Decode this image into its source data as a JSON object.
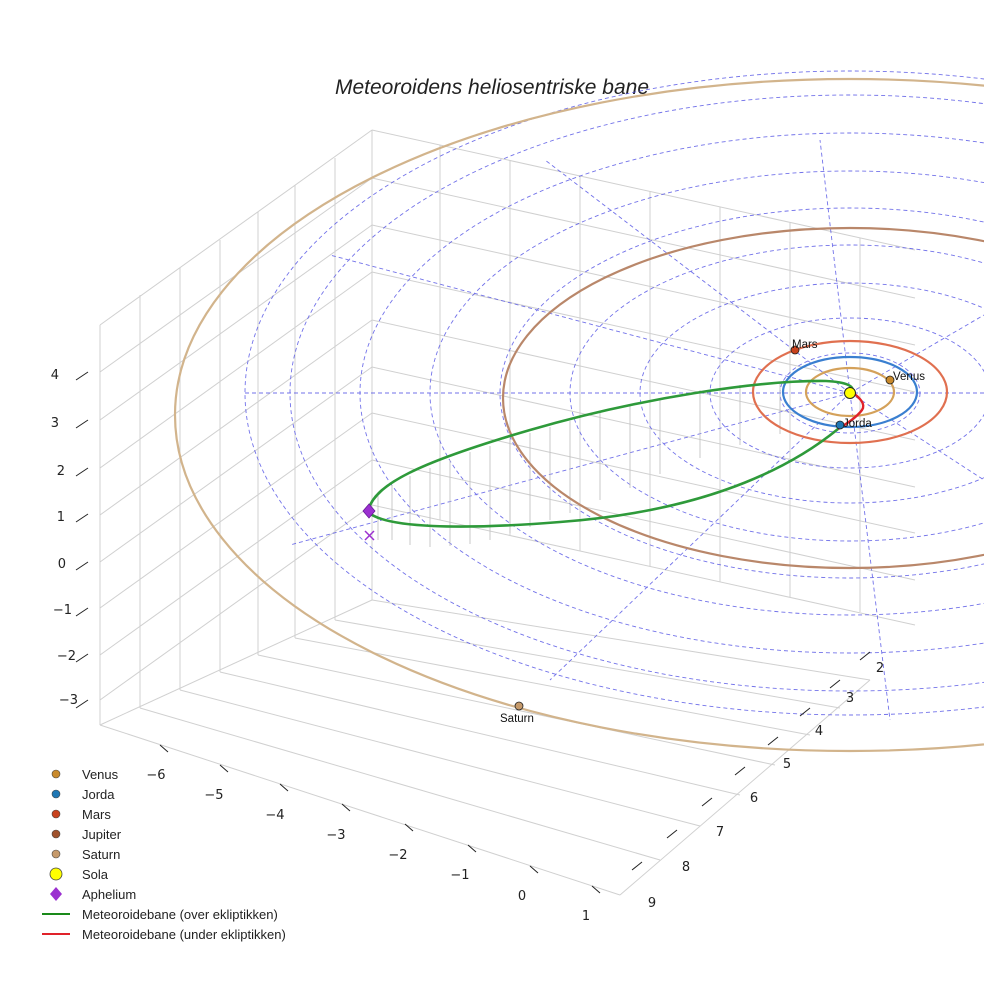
{
  "chart_data": {
    "type": "3d-orbit-plot",
    "title": "Meteoroidens heliosentriske bane",
    "z_ticks": [
      "4",
      "3",
      "2",
      "1",
      "0",
      "−1",
      "−2",
      "−3"
    ],
    "x_ticks": [
      "−6",
      "−5",
      "−4",
      "−3",
      "−2",
      "−1",
      "0",
      "1"
    ],
    "y_ticks": [
      "2",
      "3",
      "4",
      "5",
      "6",
      "7",
      "8",
      "9"
    ],
    "planets": [
      {
        "name": "Venus",
        "label": "Venus",
        "a_au": 0.72,
        "color": "#d4a15a",
        "marker": "#c98a2c"
      },
      {
        "name": "Jorda",
        "label": "Jorda",
        "a_au": 1.0,
        "color": "#3a7fd0",
        "marker": "#1f77b4"
      },
      {
        "name": "Mars",
        "label": "Mars",
        "a_au": 1.52,
        "color": "#e07050",
        "marker": "#c8421e"
      },
      {
        "name": "Jupiter",
        "label": "",
        "a_au": 5.2,
        "color": "#b9876a",
        "marker": "#a0522d"
      },
      {
        "name": "Saturn",
        "label": "Saturn",
        "a_au": 9.58,
        "color": "#d2b48c",
        "marker": "#c69a6b"
      }
    ],
    "meteoroid": {
      "perihelion_au": 0.3,
      "aphelion_au": 6.5,
      "color_above": "#2e9a3a",
      "color_below": "#e0222a"
    },
    "legend": [
      {
        "label": "Venus",
        "symbol": "circle",
        "color": "#c98a2c"
      },
      {
        "label": "Jorda",
        "symbol": "circle",
        "color": "#1f77b4"
      },
      {
        "label": "Mars",
        "symbol": "circle",
        "color": "#c8421e"
      },
      {
        "label": "Jupiter",
        "symbol": "circle",
        "color": "#a0522d"
      },
      {
        "label": "Saturn",
        "symbol": "circle",
        "color": "#c69a6b"
      },
      {
        "label": "Sola",
        "symbol": "big-circle",
        "color": "#ffff00"
      },
      {
        "label": "Aphelium",
        "symbol": "diamond",
        "color": "#9b30d0"
      },
      {
        "label": "Meteoroidebane (over ekliptikken)",
        "symbol": "line",
        "color": "#1a8a1a"
      },
      {
        "label": "Meteoroidebane (under ekliptikken)",
        "symbol": "line",
        "color": "#e0222a"
      }
    ]
  }
}
